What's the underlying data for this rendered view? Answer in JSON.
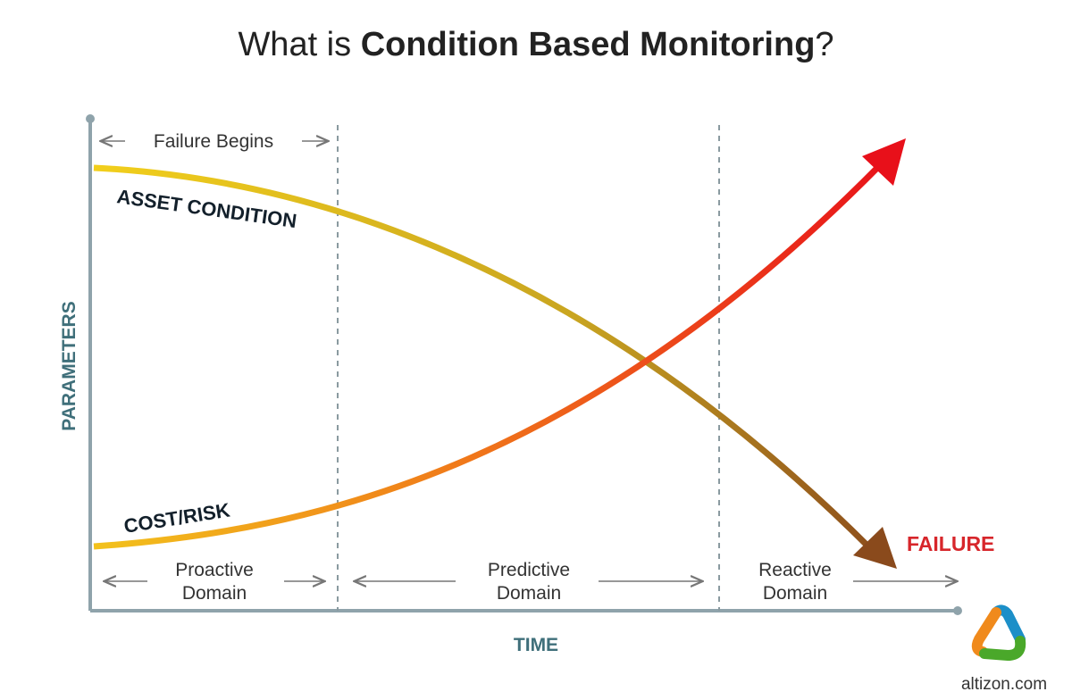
{
  "title": {
    "prefix": "What is ",
    "bold": "Condition Based Monitoring",
    "suffix": "?"
  },
  "axes": {
    "y_label": "PARAMETERS",
    "x_label": "TIME"
  },
  "top_region": {
    "label": "Failure Begins"
  },
  "curves": {
    "asset_condition": {
      "label": "ASSET CONDITION",
      "colors": [
        "#f2cf1c",
        "#8a4a1c"
      ]
    },
    "cost_risk": {
      "label": "COST/RISK",
      "colors": [
        "#f2c21c",
        "#e8101a"
      ]
    }
  },
  "failure_label": "FAILURE",
  "domains": [
    {
      "line1": "Proactive",
      "line2": "Domain"
    },
    {
      "line1": "Predictive",
      "line2": "Domain"
    },
    {
      "line1": "Reactive",
      "line2": "Domain"
    }
  ],
  "logo": {
    "text": "altizon.com",
    "colors": [
      "#f08a1c",
      "#1c8fc8",
      "#4aa82a"
    ]
  },
  "colors": {
    "axis": "#8fa3ab",
    "divider": "#8a9aa0",
    "failure": "#d7262b"
  }
}
